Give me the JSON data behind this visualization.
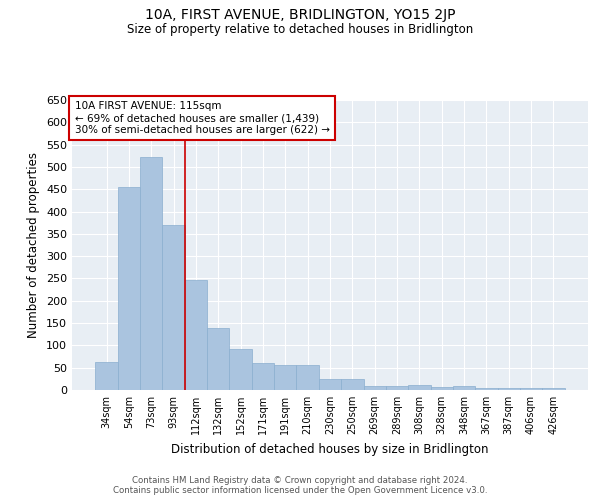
{
  "title": "10A, FIRST AVENUE, BRIDLINGTON, YO15 2JP",
  "subtitle": "Size of property relative to detached houses in Bridlington",
  "xlabel": "Distribution of detached houses by size in Bridlington",
  "ylabel": "Number of detached properties",
  "categories": [
    "34sqm",
    "54sqm",
    "73sqm",
    "93sqm",
    "112sqm",
    "132sqm",
    "152sqm",
    "171sqm",
    "191sqm",
    "210sqm",
    "230sqm",
    "250sqm",
    "269sqm",
    "289sqm",
    "308sqm",
    "328sqm",
    "348sqm",
    "367sqm",
    "387sqm",
    "406sqm",
    "426sqm"
  ],
  "values": [
    62,
    455,
    522,
    370,
    247,
    138,
    93,
    60,
    57,
    55,
    25,
    25,
    10,
    10,
    12,
    7,
    8,
    5,
    4,
    5,
    5
  ],
  "bar_color": "#aac4df",
  "bar_edge_color": "#8aaecf",
  "ylim": [
    0,
    650
  ],
  "yticks": [
    0,
    50,
    100,
    150,
    200,
    250,
    300,
    350,
    400,
    450,
    500,
    550,
    600,
    650
  ],
  "property_label": "10A FIRST AVENUE: 115sqm",
  "annotation_line1": "← 69% of detached houses are smaller (1,439)",
  "annotation_line2": "30% of semi-detached houses are larger (622) →",
  "vline_bin_index": 3.5,
  "annotation_box_color": "#ffffff",
  "annotation_border_color": "#cc0000",
  "vline_color": "#cc0000",
  "background_color": "#e8eef4",
  "footer_line1": "Contains HM Land Registry data © Crown copyright and database right 2024.",
  "footer_line2": "Contains public sector information licensed under the Open Government Licence v3.0."
}
